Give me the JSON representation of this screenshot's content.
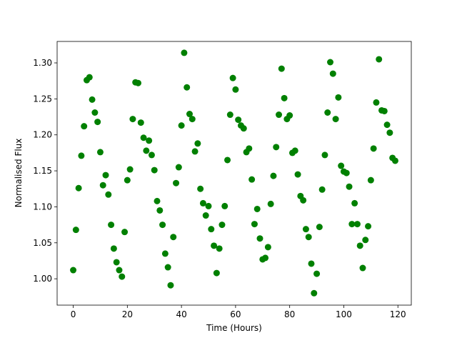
{
  "chart_data": {
    "type": "scatter",
    "xlabel": "Time (Hours)",
    "ylabel": "Normalised Flux",
    "color": "#008000",
    "grid": false,
    "x": [
      0,
      1,
      2,
      3,
      4,
      5,
      6,
      7,
      8,
      9,
      10,
      11,
      12,
      13,
      14,
      15,
      16,
      17,
      18,
      19,
      20,
      21,
      22,
      23,
      24,
      25,
      26,
      27,
      28,
      29,
      30,
      31,
      32,
      33,
      34,
      35,
      36,
      37,
      38,
      39,
      40,
      41,
      42,
      43,
      44,
      45,
      46,
      47,
      48,
      49,
      50,
      51,
      52,
      53,
      54,
      55,
      56,
      57,
      58,
      59,
      60,
      61,
      62,
      63,
      64,
      65,
      66,
      67,
      68,
      69,
      70,
      71,
      72,
      73,
      74,
      75,
      76,
      77,
      78,
      79,
      80,
      81,
      82,
      83,
      84,
      85,
      86,
      87,
      88,
      89,
      90,
      91,
      92,
      93,
      94,
      95,
      96,
      97,
      98,
      99,
      100,
      101,
      102,
      103,
      104,
      105,
      106,
      107,
      108,
      109,
      110,
      111,
      112,
      113,
      114,
      115,
      116,
      117,
      118,
      119
    ],
    "values": [
      1.012,
      1.068,
      1.126,
      1.171,
      1.212,
      1.276,
      1.28,
      1.249,
      1.231,
      1.218,
      1.176,
      1.13,
      1.144,
      1.117,
      1.075,
      1.042,
      1.023,
      1.012,
      1.003,
      1.065,
      1.137,
      1.152,
      1.222,
      1.273,
      1.272,
      1.217,
      1.196,
      1.178,
      1.192,
      1.172,
      1.151,
      1.108,
      1.095,
      1.075,
      1.035,
      1.016,
      0.991,
      1.058,
      1.133,
      1.155,
      1.213,
      1.314,
      1.266,
      1.229,
      1.222,
      1.177,
      1.188,
      1.125,
      1.105,
      1.088,
      1.101,
      1.069,
      1.046,
      1.008,
      1.042,
      1.075,
      1.101,
      1.165,
      1.228,
      1.279,
      1.263,
      1.221,
      1.213,
      1.209,
      1.176,
      1.181,
      1.138,
      1.076,
      1.097,
      1.056,
      1.027,
      1.029,
      1.044,
      1.104,
      1.143,
      1.183,
      1.228,
      1.292,
      1.251,
      1.222,
      1.227,
      1.175,
      1.178,
      1.145,
      1.115,
      1.109,
      1.069,
      1.058,
      1.021,
      0.98,
      1.007,
      1.072,
      1.124,
      1.172,
      1.231,
      1.301,
      1.285,
      1.222,
      1.252,
      1.157,
      1.149,
      1.147,
      1.128,
      1.076,
      1.105,
      1.076,
      1.046,
      1.015,
      1.054,
      1.073,
      1.137,
      1.181,
      1.245,
      1.305,
      1.234,
      1.233,
      1.214,
      1.203,
      1.168,
      1.164
    ],
    "xlim": [
      -5.95,
      124.95
    ],
    "xticks": [
      0,
      20,
      40,
      60,
      80,
      100,
      120
    ],
    "ylim": [
      0.9634,
      1.3298
    ],
    "yticks": [
      {
        "value": 1,
        "label": "1.00"
      },
      1.05,
      {
        "value": 1.1,
        "label": "1.10"
      },
      1.15,
      {
        "value": 1.2,
        "label": "1.20"
      },
      1.25,
      {
        "value": 1.3,
        "label": "1.30"
      }
    ]
  }
}
